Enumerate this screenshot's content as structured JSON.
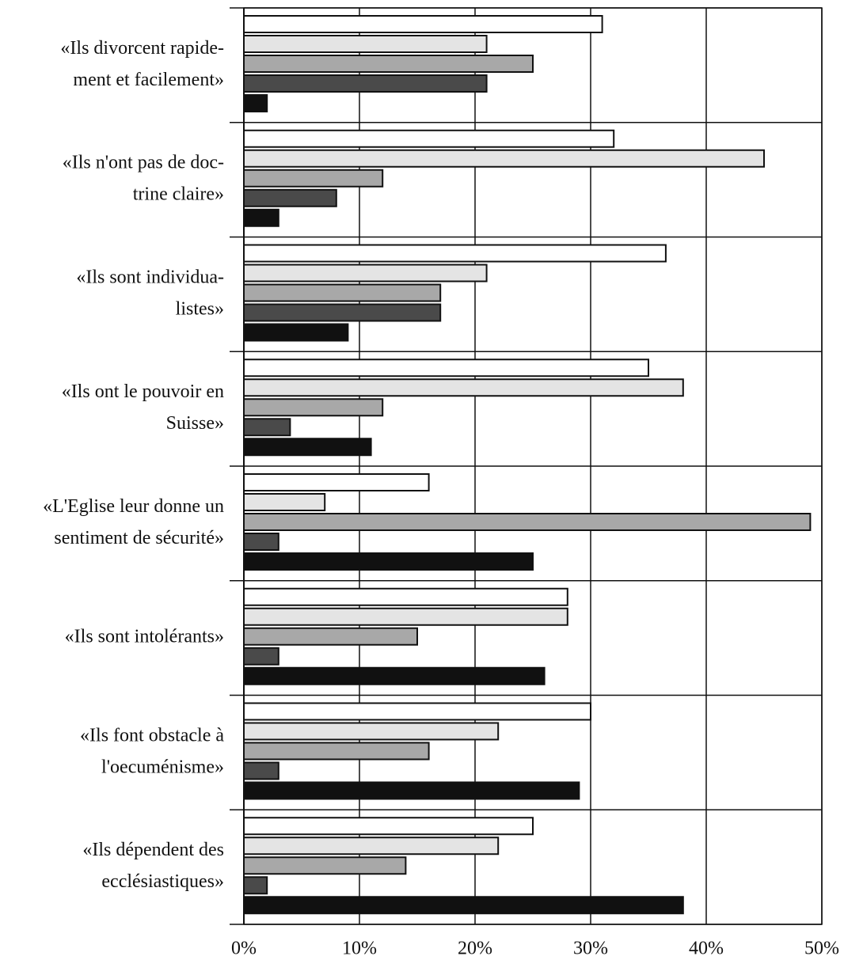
{
  "chart_data": {
    "type": "barh",
    "categories": [
      [
        "«Ils divorcent rapide-",
        "ment et facilement»"
      ],
      [
        "«Ils n'ont pas de doc-",
        "trine claire»"
      ],
      [
        "«Ils sont individua-",
        "listes»"
      ],
      [
        "«Ils ont le pouvoir en",
        "Suisse»"
      ],
      [
        "«L'Eglise leur donne un",
        "sentiment de sécurité»"
      ],
      [
        "«Ils sont intolérants»"
      ],
      [
        "«Ils font obstacle à",
        "l'oecuménisme»"
      ],
      [
        "«Ils dépendent des",
        "ecclésiastiques»"
      ]
    ],
    "series": [
      {
        "color": "#ffffff",
        "values": [
          31,
          32,
          36.5,
          35,
          16,
          28,
          30,
          25
        ]
      },
      {
        "color": "#e4e4e4",
        "values": [
          21,
          45,
          21,
          38,
          7,
          28,
          22,
          22
        ]
      },
      {
        "color": "#a8a8a8",
        "values": [
          25,
          12,
          17,
          12,
          49,
          15,
          16,
          14
        ]
      },
      {
        "color": "#4a4a4a",
        "values": [
          21,
          8,
          17,
          4,
          3,
          3,
          3,
          2
        ]
      },
      {
        "color": "#111111",
        "values": [
          2,
          3,
          9,
          11,
          25,
          26,
          29,
          38
        ]
      }
    ],
    "xlim": [
      0,
      50
    ],
    "xticks": [
      {
        "value": 0,
        "label": "0%"
      },
      {
        "value": 10,
        "label": "10%"
      },
      {
        "value": 20,
        "label": "20%"
      },
      {
        "value": 30,
        "label": "30%"
      },
      {
        "value": 40,
        "label": "40%"
      },
      {
        "value": 50,
        "label": "50%"
      }
    ],
    "grid": true
  }
}
